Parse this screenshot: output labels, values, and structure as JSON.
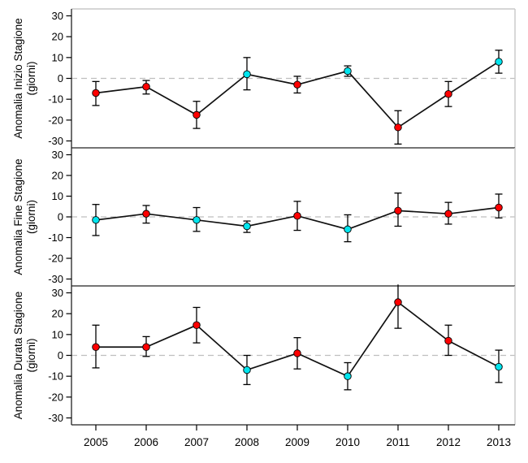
{
  "figure": {
    "description": "Three stacked line charts of seasonal anomalies (days) per year with error bars",
    "background": "#ffffff",
    "colors": {
      "point_red": "#ff0000",
      "point_cyan": "#00e5ee",
      "point_outline": "#000000",
      "series_line": "#111111",
      "zero_dash": "#bfbfbf",
      "outer_border": "#c8c8c8",
      "axis_line": "#222222"
    }
  },
  "x_axis": {
    "tick_labels": [
      "2005",
      "2006",
      "2007",
      "2008",
      "2009",
      "2010",
      "2011",
      "2012",
      "2013"
    ]
  },
  "chart_data": [
    {
      "type": "line",
      "panel_id": "inizio",
      "ylabel_line1": "Anomalia Inizio Stagione",
      "ylabel_line2": "(giorni)",
      "x": [
        2005,
        2006,
        2007,
        2008,
        2009,
        2010,
        2011,
        2012,
        2013
      ],
      "values": [
        -7,
        -4,
        -17.5,
        2,
        -3,
        3.5,
        -23.5,
        -7.5,
        8
      ],
      "err_low": [
        -13,
        -7.5,
        -24,
        -5.5,
        -7,
        1,
        -31.5,
        -13.5,
        2.5
      ],
      "err_high": [
        -1.5,
        -1,
        -11,
        10,
        1,
        6,
        -15.5,
        -1.5,
        13.5
      ],
      "point_colors": [
        "red",
        "red",
        "red",
        "cyan",
        "red",
        "cyan",
        "red",
        "red",
        "cyan"
      ],
      "ylim": [
        -33,
        33
      ],
      "yticks": [
        -30,
        -20,
        -10,
        0,
        10,
        20,
        30
      ],
      "zero_line_dashed": true,
      "grid": false,
      "legend": null
    },
    {
      "type": "line",
      "panel_id": "fine",
      "ylabel_line1": "Anomalia Fine Stagione",
      "ylabel_line2": "(giorni)",
      "x": [
        2005,
        2006,
        2007,
        2008,
        2009,
        2010,
        2011,
        2012,
        2013
      ],
      "values": [
        -1.5,
        1.5,
        -1.5,
        -4.5,
        0.5,
        -6,
        3,
        1.5,
        4.5
      ],
      "err_low": [
        -9,
        -3,
        -7,
        -7.5,
        -6.5,
        -12,
        -4.5,
        -3.5,
        -0.5
      ],
      "err_high": [
        6,
        5.5,
        4.5,
        -2,
        7.5,
        1,
        11.5,
        7,
        11
      ],
      "point_colors": [
        "cyan",
        "red",
        "cyan",
        "cyan",
        "red",
        "cyan",
        "red",
        "red",
        "red"
      ],
      "ylim": [
        -33,
        33
      ],
      "yticks": [
        -30,
        -20,
        -10,
        0,
        10,
        20,
        30
      ],
      "zero_line_dashed": true,
      "grid": false,
      "legend": null
    },
    {
      "type": "line",
      "panel_id": "durata",
      "ylabel_line1": "Anomalia Durata Stagione",
      "ylabel_line2": "(giorni)",
      "x": [
        2005,
        2006,
        2007,
        2008,
        2009,
        2010,
        2011,
        2012,
        2013
      ],
      "values": [
        4,
        4,
        14.5,
        -7,
        1,
        -10,
        25.5,
        7,
        -5.5
      ],
      "err_low": [
        -6,
        -0.5,
        6,
        -14,
        -6.5,
        -16.5,
        13,
        0,
        -13
      ],
      "err_high": [
        14.5,
        9,
        23,
        0,
        8.5,
        -3.5,
        34,
        14.5,
        2.5
      ],
      "point_colors": [
        "red",
        "red",
        "red",
        "cyan",
        "red",
        "cyan",
        "red",
        "red",
        "cyan"
      ],
      "ylim": [
        -33,
        33
      ],
      "yticks": [
        -30,
        -20,
        -10,
        0,
        10,
        20,
        30
      ],
      "zero_line_dashed": true,
      "grid": false,
      "legend": null
    }
  ]
}
